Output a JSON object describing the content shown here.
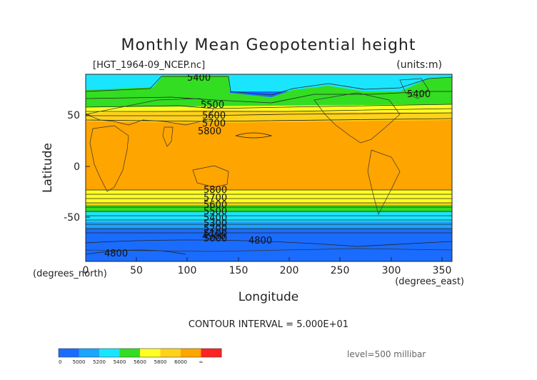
{
  "title": "Monthly Mean Geopotential height",
  "filename": "[HGT_1964-09_NCEP.nc]",
  "units": "(units:m)",
  "xlabel": "Longitude",
  "ylabel": "Latitude",
  "xunit_label": "(degrees_east)",
  "yunit_label": "(degrees_north)",
  "contour_interval": "CONTOUR INTERVAL = 5.000E+01",
  "level": "level=500 millibar",
  "map": {
    "x_ticks": [
      "0",
      "50",
      "100",
      "150",
      "200",
      "250",
      "300",
      "350"
    ],
    "y_ticks": [
      "50",
      "0",
      "-50"
    ],
    "contour_labels": [
      "5400",
      "5500",
      "5600",
      "5700",
      "5800",
      "5400",
      "5800",
      "5700",
      "5600",
      "5500",
      "5400",
      "5300",
      "5200",
      "5100",
      "5000",
      "4900",
      "4800",
      "4800"
    ],
    "colors": {
      "blue": "#1a6cff",
      "light_blue": "#1aa5ff",
      "cyan": "#1ae5ff",
      "green": "#33dd22",
      "yellow": "#ffff22",
      "gold": "#ffd21a",
      "orange": "#ffa500",
      "red": "#ff2222"
    }
  },
  "colorbar": {
    "labels": [
      "0",
      "5000",
      "5200",
      "5400",
      "5600",
      "5800",
      "6000",
      "∞"
    ],
    "colors": [
      "#1a6cff",
      "#1a6cff",
      "#1aa5ff",
      "#1aa5ff",
      "#1ae5ff",
      "#1ae5ff",
      "#33dd22",
      "#33dd22",
      "#ffff22",
      "#ffff22",
      "#ffd21a",
      "#ffd21a",
      "#ffa500",
      "#ffa500",
      "#ff2222",
      "#ff2222"
    ]
  }
}
